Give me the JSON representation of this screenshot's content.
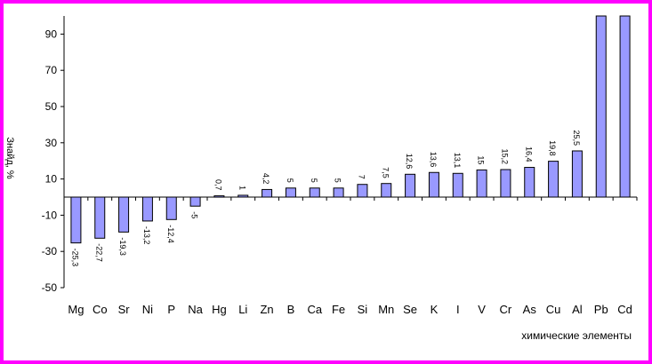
{
  "chart_data": {
    "type": "bar",
    "ylabel": "Знайд, %",
    "xlabel": "химические элементы",
    "ylim": [
      -50,
      100
    ],
    "yticks": [
      90,
      70,
      50,
      30,
      10,
      -10,
      -30,
      -50
    ],
    "grid": false,
    "legend": "none",
    "categories": [
      "Mg",
      "Co",
      "Sr",
      "Ni",
      "P",
      "Na",
      "Hg",
      "Li",
      "Zn",
      "B",
      "Ca",
      "Fe",
      "Si",
      "Mn",
      "Se",
      "K",
      "I",
      "V",
      "Cr",
      "As",
      "Cu",
      "Al",
      "Pb",
      "Cd"
    ],
    "values": [
      -25.3,
      -22.7,
      -19.3,
      -13.2,
      -12.4,
      -5.0,
      0.7,
      1.0,
      4.2,
      5.0,
      5.0,
      5.0,
      7.0,
      7.5,
      12.6,
      13.6,
      13.1,
      15.0,
      15.2,
      16.4,
      19.8,
      25.5,
      100,
      100
    ],
    "data_labels": [
      "-25,3",
      "-22,7",
      "-19,3",
      "-13,2",
      "-12,4",
      "-5",
      "0,7",
      "1",
      "4,2",
      "5",
      "5",
      "5",
      "7",
      "7,5",
      "12,6",
      "13,6",
      "13,1",
      "15",
      "15,2",
      "16,4",
      "19,8",
      "25,5",
      "",
      ""
    ],
    "colors": {
      "bar_fill": "#9999ff",
      "bar_edge": "#000000",
      "frame": "#ff00ff",
      "axis": "#000000"
    }
  }
}
